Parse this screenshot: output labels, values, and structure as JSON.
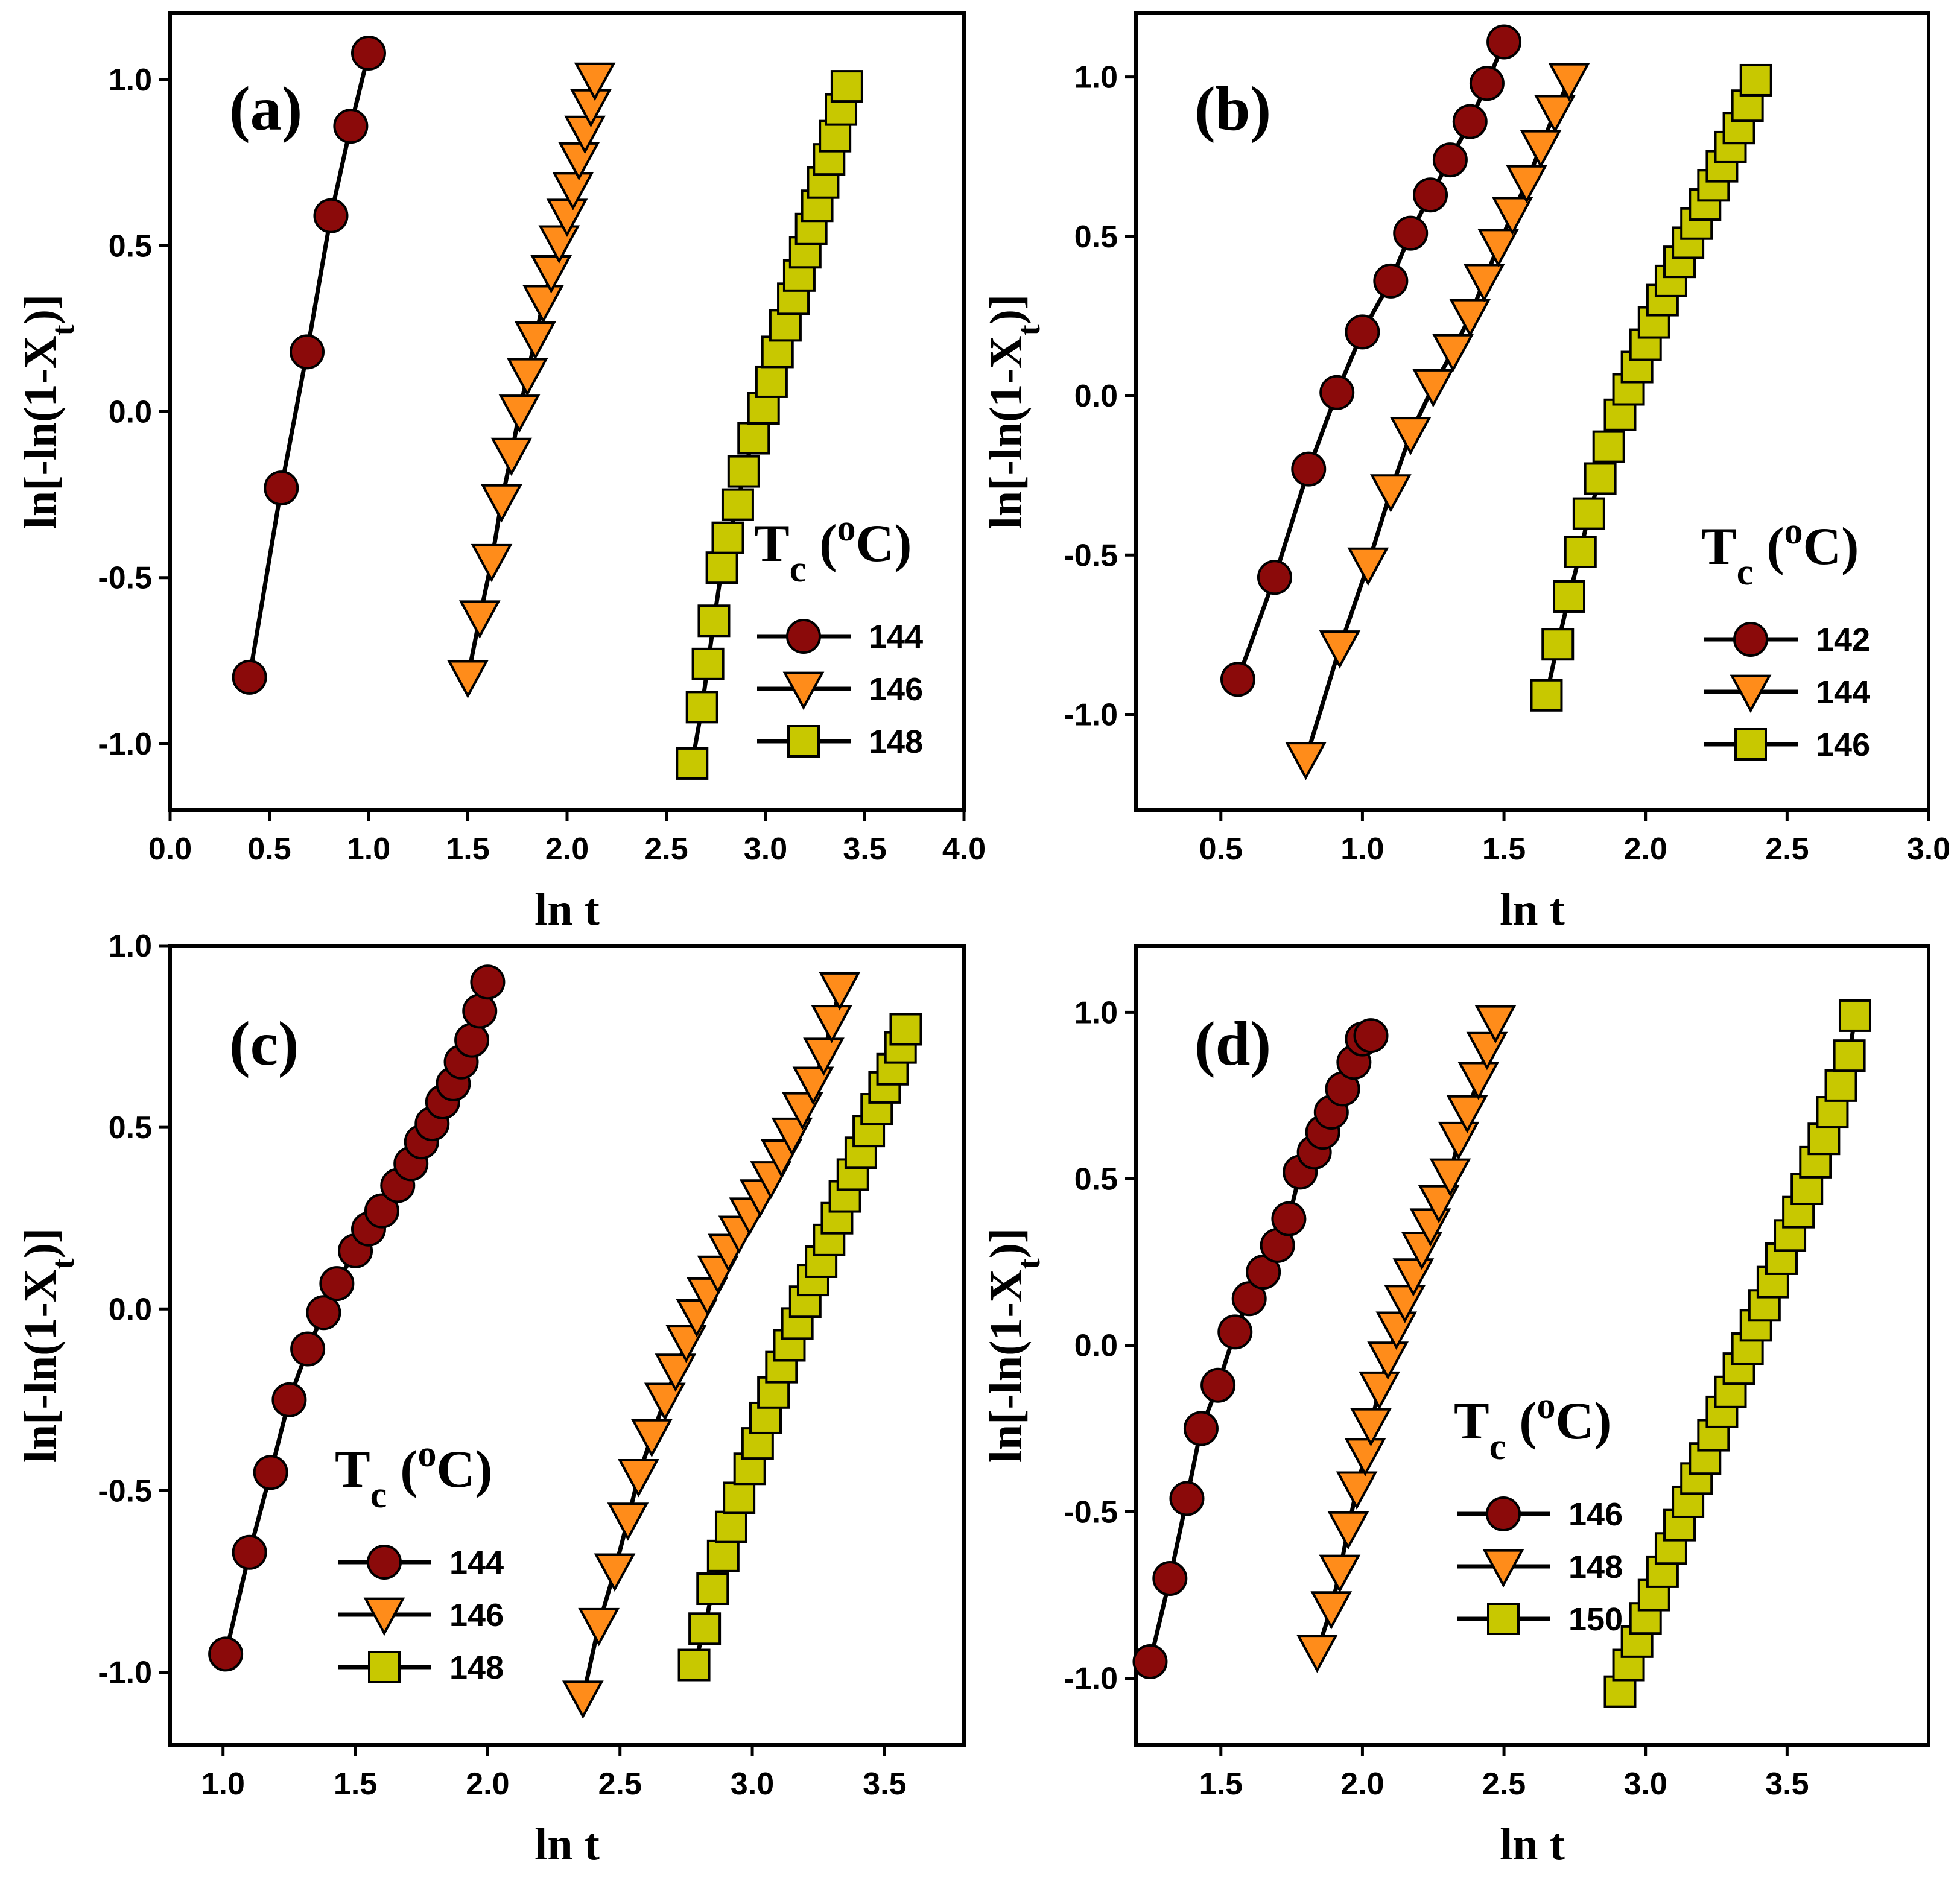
{
  "colors": {
    "s1": "#8B0A0A",
    "s2": "#FF8C1A",
    "s3": "#C8C800"
  },
  "chart_data": [
    {
      "type": "scatter",
      "panel_label": "(a)",
      "xlabel": "ln t",
      "ylabel": "ln[-ln(1-X_t)]",
      "xlim": [
        0.0,
        4.0
      ],
      "ylim": [
        -1.2,
        1.2
      ],
      "xticks": [
        "0.0",
        "0.5",
        "1.0",
        "1.5",
        "2.0",
        "2.5",
        "3.0",
        "3.5",
        "4.0"
      ],
      "yticks": [
        "-1.0",
        "-0.5",
        "0.0",
        "0.5",
        "1.0"
      ],
      "legend_title": "Tc (oC)",
      "legend_position": "bottom-right",
      "series": [
        {
          "name": "144",
          "marker": "circle",
          "color": "#8B0A0A",
          "x": [
            0.4,
            0.56,
            0.69,
            0.81,
            0.91,
            1.0
          ],
          "y": [
            -0.8,
            -0.23,
            0.18,
            0.59,
            0.86,
            1.08
          ]
        },
        {
          "name": "146",
          "marker": "triangle-down",
          "color": "#FF8C1A",
          "x": [
            1.5,
            1.56,
            1.62,
            1.67,
            1.72,
            1.76,
            1.8,
            1.84,
            1.88,
            1.92,
            1.96,
            2.0,
            2.03,
            2.06,
            2.09,
            2.12,
            2.14
          ],
          "y": [
            -0.8,
            -0.62,
            -0.45,
            -0.27,
            -0.13,
            0.0,
            0.11,
            0.22,
            0.33,
            0.42,
            0.51,
            0.59,
            0.67,
            0.76,
            0.84,
            0.92,
            1.0
          ]
        },
        {
          "name": "148",
          "marker": "square",
          "color": "#C8C800",
          "x": [
            2.63,
            2.68,
            2.71,
            2.74,
            2.78,
            2.81,
            2.86,
            2.89,
            2.94,
            2.99,
            3.03,
            3.06,
            3.1,
            3.14,
            3.17,
            3.2,
            3.23,
            3.26,
            3.29,
            3.32,
            3.35,
            3.38,
            3.41
          ],
          "y": [
            -1.06,
            -0.89,
            -0.76,
            -0.63,
            -0.47,
            -0.38,
            -0.28,
            -0.18,
            -0.08,
            0.01,
            0.09,
            0.18,
            0.26,
            0.34,
            0.41,
            0.48,
            0.55,
            0.62,
            0.69,
            0.76,
            0.83,
            0.91,
            0.98
          ]
        }
      ]
    },
    {
      "type": "scatter",
      "panel_label": "(b)",
      "xlabel": "ln t",
      "ylabel": "ln[-ln(1-X_t)]",
      "xlim": [
        0.2,
        3.0
      ],
      "ylim": [
        -1.3,
        1.2
      ],
      "xticks": [
        "0.5",
        "1.0",
        "1.5",
        "2.0",
        "2.5",
        "3.0"
      ],
      "yticks": [
        "-1.0",
        "-0.5",
        "0.0",
        "0.5",
        "1.0"
      ],
      "legend_title": "Tc (oC)",
      "legend_position": "bottom-right",
      "series": [
        {
          "name": "142",
          "marker": "circle",
          "color": "#8B0A0A",
          "x": [
            0.56,
            0.69,
            0.81,
            0.91,
            1.0,
            1.1,
            1.17,
            1.24,
            1.31,
            1.38,
            1.44,
            1.5
          ],
          "y": [
            -0.89,
            -0.57,
            -0.23,
            0.01,
            0.2,
            0.36,
            0.51,
            0.63,
            0.74,
            0.86,
            0.98,
            1.11
          ]
        },
        {
          "name": "144",
          "marker": "triangle-down",
          "color": "#FF8C1A",
          "x": [
            0.8,
            0.92,
            1.02,
            1.1,
            1.17,
            1.25,
            1.32,
            1.38,
            1.43,
            1.48,
            1.53,
            1.58,
            1.63,
            1.68,
            1.73
          ],
          "y": [
            -1.14,
            -0.79,
            -0.53,
            -0.3,
            -0.12,
            0.03,
            0.14,
            0.25,
            0.36,
            0.47,
            0.57,
            0.67,
            0.78,
            0.89,
            0.99
          ]
        },
        {
          "name": "146",
          "marker": "square",
          "color": "#C8C800",
          "x": [
            1.65,
            1.69,
            1.73,
            1.77,
            1.8,
            1.84,
            1.87,
            1.91,
            1.94,
            1.97,
            2.0,
            2.03,
            2.06,
            2.09,
            2.12,
            2.15,
            2.18,
            2.21,
            2.24,
            2.27,
            2.3,
            2.33,
            2.36,
            2.39
          ],
          "y": [
            -0.94,
            -0.78,
            -0.63,
            -0.49,
            -0.37,
            -0.26,
            -0.16,
            -0.06,
            0.02,
            0.09,
            0.16,
            0.23,
            0.3,
            0.36,
            0.42,
            0.48,
            0.54,
            0.6,
            0.66,
            0.72,
            0.78,
            0.84,
            0.91,
            0.99
          ]
        }
      ]
    },
    {
      "type": "scatter",
      "panel_label": "(c)",
      "xlabel": "ln t",
      "ylabel": "ln[-ln(1-X_t)]",
      "xlim": [
        0.8,
        3.8
      ],
      "ylim": [
        -1.2,
        1.0
      ],
      "xticks": [
        "1.0",
        "1.5",
        "2.0",
        "2.5",
        "3.0",
        "3.5"
      ],
      "yticks": [
        "-1.0",
        "-0.5",
        "0.0",
        "0.5",
        "1.0"
      ],
      "legend_title": "Tc (oC)",
      "legend_position": "bottom-left",
      "series": [
        {
          "name": "144",
          "marker": "circle",
          "color": "#8B0A0A",
          "x": [
            1.01,
            1.1,
            1.18,
            1.25,
            1.32,
            1.38,
            1.43,
            1.5,
            1.55,
            1.6,
            1.66,
            1.71,
            1.75,
            1.79,
            1.83,
            1.87,
            1.9,
            1.94,
            1.97,
            2.0
          ],
          "y": [
            -0.95,
            -0.67,
            -0.45,
            -0.25,
            -0.11,
            -0.01,
            0.07,
            0.16,
            0.22,
            0.27,
            0.34,
            0.4,
            0.46,
            0.51,
            0.57,
            0.62,
            0.68,
            0.74,
            0.82,
            0.9
          ]
        },
        {
          "name": "146",
          "marker": "triangle-down",
          "color": "#FF8C1A",
          "x": [
            2.36,
            2.42,
            2.48,
            2.53,
            2.57,
            2.62,
            2.67,
            2.71,
            2.75,
            2.79,
            2.83,
            2.87,
            2.91,
            2.95,
            2.99,
            3.03,
            3.07,
            3.11,
            3.15,
            3.19,
            3.23,
            3.27,
            3.3,
            3.33
          ],
          "y": [
            -1.07,
            -0.87,
            -0.72,
            -0.58,
            -0.46,
            -0.35,
            -0.25,
            -0.17,
            -0.09,
            -0.02,
            0.04,
            0.1,
            0.16,
            0.21,
            0.26,
            0.31,
            0.36,
            0.42,
            0.48,
            0.55,
            0.62,
            0.7,
            0.79,
            0.88
          ]
        },
        {
          "name": "148",
          "marker": "square",
          "color": "#C8C800",
          "x": [
            2.78,
            2.82,
            2.85,
            2.89,
            2.92,
            2.95,
            2.99,
            3.02,
            3.05,
            3.08,
            3.11,
            3.14,
            3.17,
            3.2,
            3.23,
            3.26,
            3.29,
            3.32,
            3.35,
            3.38,
            3.41,
            3.44,
            3.47,
            3.5,
            3.53,
            3.56,
            3.58
          ],
          "y": [
            -0.98,
            -0.88,
            -0.77,
            -0.68,
            -0.6,
            -0.52,
            -0.44,
            -0.37,
            -0.3,
            -0.23,
            -0.16,
            -0.1,
            -0.04,
            0.02,
            0.08,
            0.13,
            0.19,
            0.25,
            0.31,
            0.37,
            0.43,
            0.49,
            0.55,
            0.61,
            0.66,
            0.72,
            0.77
          ]
        }
      ]
    },
    {
      "type": "scatter",
      "panel_label": "(d)",
      "xlabel": "ln t",
      "ylabel": "ln[-ln(1-X_t)]",
      "xlim": [
        1.2,
        4.0
      ],
      "ylim": [
        -1.2,
        1.2
      ],
      "xticks": [
        "1.5",
        "2.0",
        "2.5",
        "3.0",
        "3.5"
      ],
      "yticks": [
        "-1.0",
        "-0.5",
        "0.0",
        "0.5",
        "1.0"
      ],
      "legend_title": "Tc (oC)",
      "legend_position": "bottom-center",
      "series": [
        {
          "name": "146",
          "marker": "circle",
          "color": "#8B0A0A",
          "x": [
            1.25,
            1.32,
            1.38,
            1.43,
            1.49,
            1.55,
            1.6,
            1.65,
            1.7,
            1.74,
            1.78,
            1.83,
            1.86,
            1.89,
            1.93,
            1.97,
            2.0,
            2.03
          ],
          "y": [
            -0.95,
            -0.7,
            -0.46,
            -0.25,
            -0.12,
            0.04,
            0.14,
            0.22,
            0.3,
            0.38,
            0.52,
            0.58,
            0.64,
            0.7,
            0.77,
            0.85,
            0.92,
            0.93
          ]
        },
        {
          "name": "148",
          "marker": "triangle-down",
          "color": "#FF8C1A",
          "x": [
            1.84,
            1.89,
            1.92,
            1.95,
            1.98,
            2.01,
            2.03,
            2.06,
            2.09,
            2.12,
            2.15,
            2.18,
            2.21,
            2.24,
            2.27,
            2.31,
            2.34,
            2.37,
            2.41,
            2.44,
            2.47
          ],
          "y": [
            -0.92,
            -0.79,
            -0.68,
            -0.55,
            -0.43,
            -0.33,
            -0.24,
            -0.13,
            -0.04,
            0.05,
            0.13,
            0.21,
            0.29,
            0.36,
            0.43,
            0.51,
            0.62,
            0.7,
            0.8,
            0.89,
            0.97
          ]
        },
        {
          "name": "150",
          "marker": "square",
          "color": "#C8C800",
          "x": [
            2.91,
            2.94,
            2.97,
            3.0,
            3.03,
            3.06,
            3.09,
            3.12,
            3.15,
            3.18,
            3.21,
            3.24,
            3.27,
            3.3,
            3.33,
            3.36,
            3.39,
            3.42,
            3.45,
            3.48,
            3.51,
            3.54,
            3.57,
            3.6,
            3.63,
            3.66,
            3.69,
            3.72,
            3.74
          ],
          "y": [
            -1.04,
            -0.96,
            -0.89,
            -0.82,
            -0.75,
            -0.68,
            -0.61,
            -0.54,
            -0.47,
            -0.4,
            -0.34,
            -0.27,
            -0.2,
            -0.14,
            -0.07,
            -0.01,
            0.06,
            0.12,
            0.19,
            0.26,
            0.33,
            0.4,
            0.47,
            0.55,
            0.62,
            0.7,
            0.78,
            0.87,
            0.99
          ]
        }
      ]
    }
  ]
}
